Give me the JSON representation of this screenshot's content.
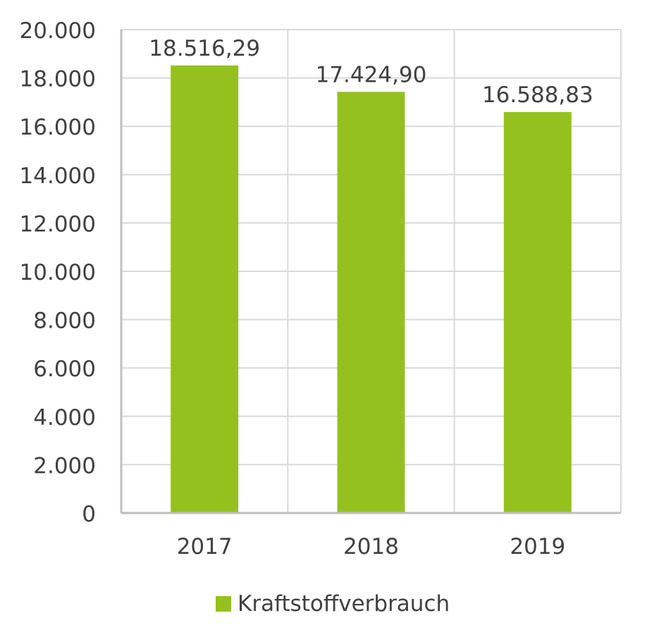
{
  "chart_data": {
    "type": "bar",
    "categories": [
      "2017",
      "2018",
      "2019"
    ],
    "series": [
      {
        "name": "Kraftstoffverbrauch",
        "values": [
          18516.29,
          17424.9,
          16588.83
        ],
        "data_labels": [
          "18.516,29",
          "17.424,90",
          "16.588,83"
        ],
        "color": "#95c11f"
      }
    ],
    "ylim": [
      0,
      20000
    ],
    "yticks": [
      0,
      2000,
      4000,
      6000,
      8000,
      10000,
      12000,
      14000,
      16000,
      18000,
      20000
    ],
    "ytick_labels": [
      "0",
      "2.000",
      "4.000",
      "6.000",
      "8.000",
      "10.000",
      "12.000",
      "14.000",
      "16.000",
      "18.000",
      "20.000"
    ],
    "grid": true,
    "legend_position": "bottom",
    "title": "",
    "xlabel": "",
    "ylabel": ""
  },
  "colors": {
    "bar": "#95c11f",
    "grid": "#d9d9d9",
    "axis": "#bfbfbf",
    "text": "#404040"
  }
}
